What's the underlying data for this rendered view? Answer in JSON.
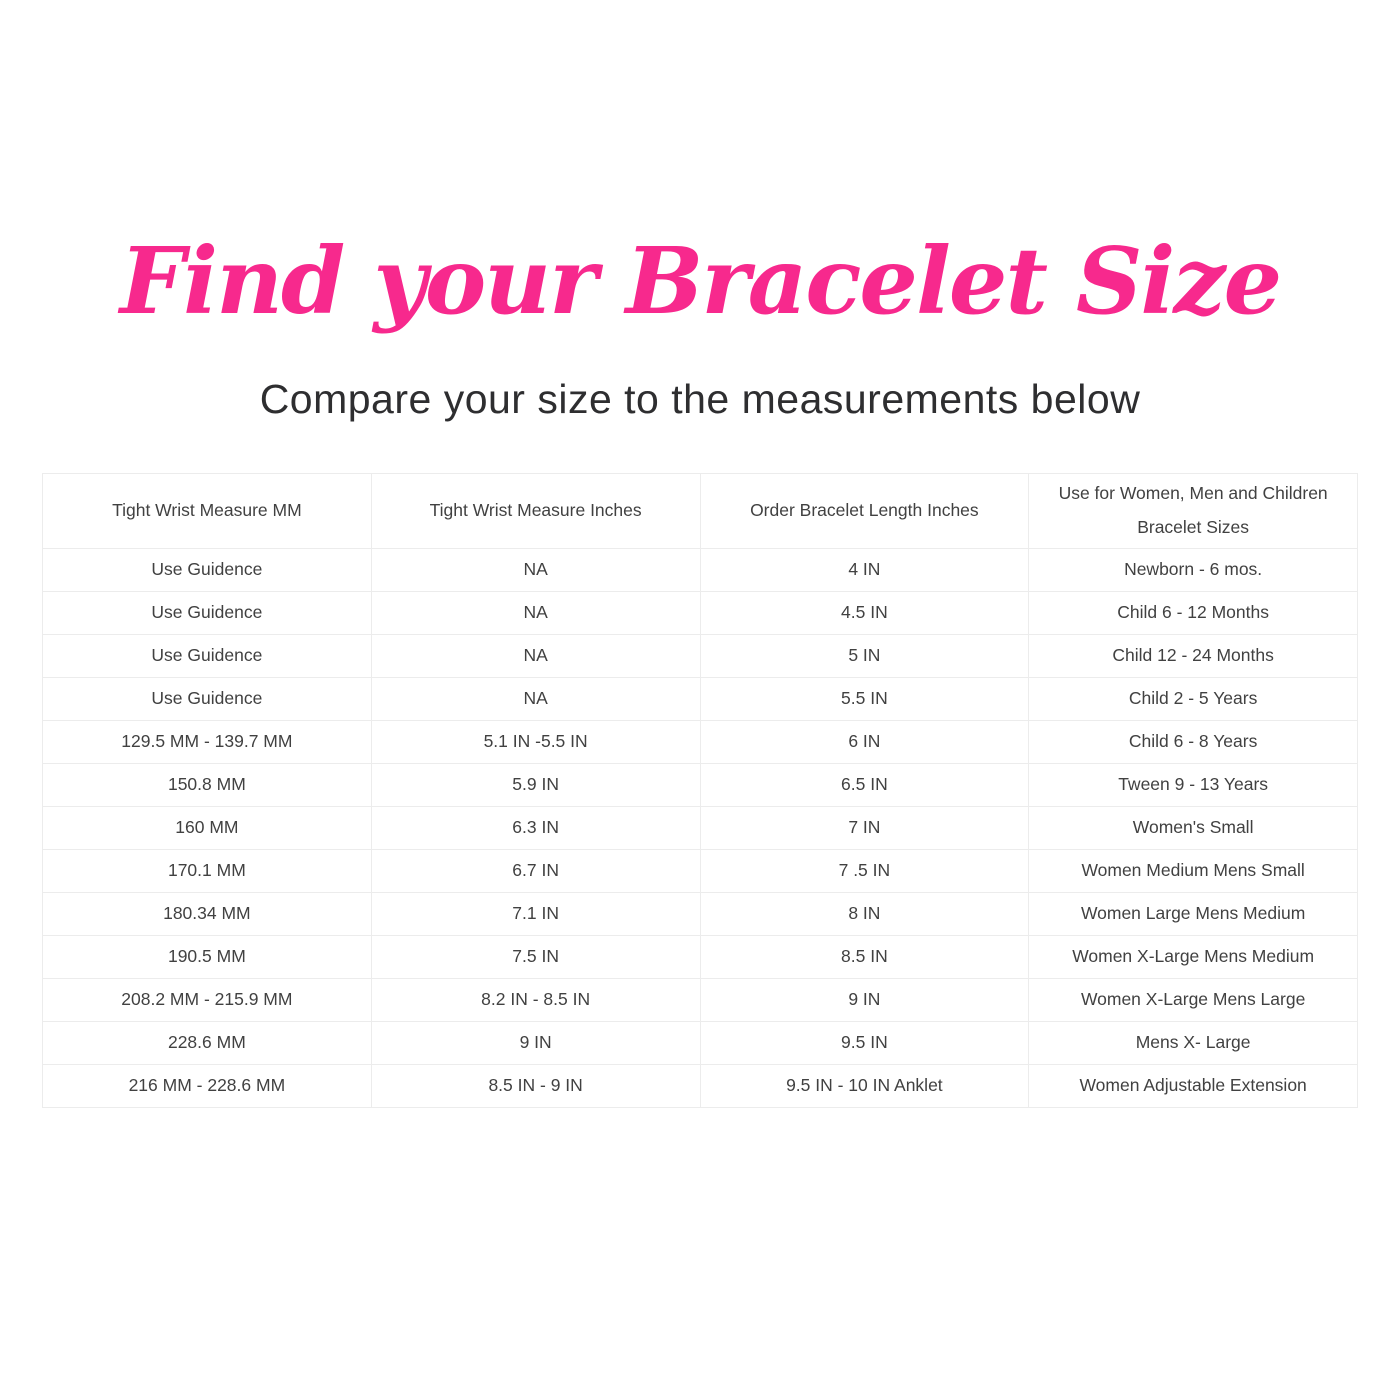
{
  "page": {
    "title": "Find your Bracelet Size",
    "subtitle": "Compare your size to the measurements below",
    "accent_color": "#f7298d",
    "text_color": "#414141",
    "border_color": "#ececec",
    "background_color": "#ffffff"
  },
  "table": {
    "headers": [
      {
        "line1": "Tight Wrist Measure MM",
        "line2": ""
      },
      {
        "line1": "Tight Wrist Measure Inches",
        "line2": ""
      },
      {
        "line1": "Order Bracelet Length Inches",
        "line2": ""
      },
      {
        "line1": "Use for Women, Men and Children",
        "line2": "Bracelet Sizes"
      }
    ],
    "rows": [
      [
        "Use Guidence",
        "NA",
        "4 IN",
        "Newborn - 6 mos."
      ],
      [
        "Use Guidence",
        "NA",
        "4.5 IN",
        "Child 6 - 12 Months"
      ],
      [
        "Use Guidence",
        "NA",
        "5 IN",
        "Child 12 - 24 Months"
      ],
      [
        "Use Guidence",
        "NA",
        "5.5 IN",
        "Child 2 - 5 Years"
      ],
      [
        "129.5 MM - 139.7 MM",
        "5.1 IN -5.5 IN",
        "6 IN",
        "Child 6 - 8 Years"
      ],
      [
        "150.8 MM",
        "5.9 IN",
        "6.5 IN",
        "Tween 9 - 13 Years"
      ],
      [
        "160 MM",
        "6.3 IN",
        "7 IN",
        "Women's Small"
      ],
      [
        "170.1 MM",
        "6.7 IN",
        "7 .5 IN",
        "Women Medium Mens Small"
      ],
      [
        "180.34 MM",
        "7.1 IN",
        "8 IN",
        "Women Large Mens Medium"
      ],
      [
        "190.5 MM",
        "7.5 IN",
        "8.5 IN",
        "Women X-Large Mens Medium"
      ],
      [
        "208.2 MM - 215.9 MM",
        "8.2 IN - 8.5 IN",
        "9 IN",
        "Women X-Large Mens Large"
      ],
      [
        "228.6 MM",
        "9 IN",
        "9.5 IN",
        "Mens X- Large"
      ],
      [
        "216 MM - 228.6 MM",
        "8.5 IN - 9 IN",
        "9.5 IN - 10 IN Anklet",
        "Women Adjustable Extension"
      ]
    ]
  }
}
